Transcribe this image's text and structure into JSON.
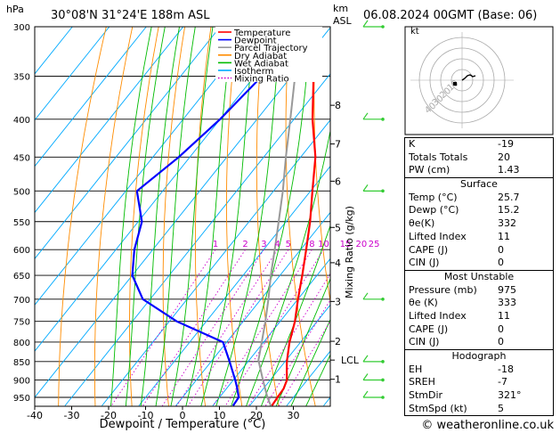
{
  "header": {
    "y_unit": "hPa",
    "location": "30°08'N  31°24'E  188m  ASL",
    "km_unit": "km",
    "asl": "ASL",
    "datetime": "06.08.2024  00GMT  (Base: 06)"
  },
  "legend": [
    {
      "name": "Temperature",
      "color": "#ff0000"
    },
    {
      "name": "Dewpoint",
      "color": "#0000ff"
    },
    {
      "name": "Parcel Trajectory",
      "color": "#999999"
    },
    {
      "name": "Dry Adiabat",
      "color": "#ff8c00"
    },
    {
      "name": "Wet Adiabat",
      "color": "#00bb00"
    },
    {
      "name": "Isotherm",
      "color": "#00aaff"
    },
    {
      "name": "Mixing Ratio",
      "color": "#cc00cc"
    }
  ],
  "chart_data": {
    "type": "skew-t",
    "xlabel": "Dewpoint / Temperature (°C)",
    "ylabel": "Mixing Ratio (g/kg)",
    "x_ticks": [
      "-40",
      "-30",
      "-20",
      "-10",
      "0",
      "10",
      "20",
      "30"
    ],
    "p_ticks": [
      "300",
      "350",
      "400",
      "450",
      "500",
      "550",
      "600",
      "650",
      "700",
      "750",
      "800",
      "850",
      "900",
      "950"
    ],
    "km_ticks": [
      {
        "label": "8",
        "p": 383
      },
      {
        "label": "7",
        "p": 432
      },
      {
        "label": "6",
        "p": 485
      },
      {
        "label": "5",
        "p": 560
      },
      {
        "label": "4",
        "p": 625
      },
      {
        "label": "3",
        "p": 705
      },
      {
        "label": "2",
        "p": 798
      },
      {
        "label": "LCL",
        "p": 846
      },
      {
        "label": "1",
        "p": 898
      }
    ],
    "mixing_ratio_labels": [
      "1",
      "2",
      "3",
      "4",
      "5",
      "8",
      "10",
      "15",
      "20",
      "25"
    ],
    "hodograph_rings": [
      "10",
      "20",
      "30",
      "40"
    ],
    "hodograph_label": "kt",
    "series": [
      {
        "name": "Temperature",
        "color": "#ff0000",
        "p": [
          975,
          950,
          925,
          900,
          875,
          850,
          800,
          750,
          700,
          650,
          600,
          550,
          500,
          450,
          400,
          350
        ],
        "t": [
          26,
          25.7,
          25.5,
          24.5,
          22.5,
          20.5,
          17,
          14,
          10,
          6,
          1.5,
          -3.5,
          -9.5,
          -16,
          -25,
          -34
        ]
      },
      {
        "name": "Dewpoint",
        "color": "#0000ff",
        "p": [
          975,
          950,
          925,
          900,
          850,
          800,
          750,
          700,
          650,
          600,
          550,
          500,
          450,
          400,
          350,
          300
        ],
        "t": [
          15.5,
          15.2,
          13,
          10.5,
          5,
          -1,
          -18,
          -32,
          -40,
          -45,
          -49,
          -57,
          -53,
          -50,
          -48,
          -50
        ]
      },
      {
        "name": "Parcel Trajectory",
        "color": "#999999",
        "p": [
          975,
          950,
          900,
          846,
          800,
          750,
          700,
          650,
          600,
          550,
          500,
          450,
          400,
          350,
          300
        ],
        "t": [
          25.7,
          23,
          18,
          12.5,
          9.5,
          6,
          2,
          -2.5,
          -7,
          -12,
          -17.5,
          -24,
          -31,
          -39,
          -48
        ]
      }
    ]
  },
  "indices": {
    "k": {
      "label": "K",
      "value": "-19"
    },
    "tt": {
      "label": "Totals Totals",
      "value": "20"
    },
    "pw": {
      "label": "PW (cm)",
      "value": "1.43"
    },
    "surface": {
      "title": "Surface",
      "rows": [
        {
          "label": "Temp (°C)",
          "value": "25.7"
        },
        {
          "label": "Dewp (°C)",
          "value": "15.2"
        },
        {
          "label": "θe(K)",
          "value": "332"
        },
        {
          "label": "Lifted Index",
          "value": "11"
        },
        {
          "label": "CAPE (J)",
          "value": "0"
        },
        {
          "label": "CIN (J)",
          "value": "0"
        }
      ]
    },
    "mu": {
      "title": "Most Unstable",
      "rows": [
        {
          "label": "Pressure (mb)",
          "value": "975"
        },
        {
          "label": "θe (K)",
          "value": "333"
        },
        {
          "label": "Lifted Index",
          "value": "11"
        },
        {
          "label": "CAPE (J)",
          "value": "0"
        },
        {
          "label": "CIN (J)",
          "value": "0"
        }
      ]
    },
    "hodo": {
      "title": "Hodograph",
      "rows": [
        {
          "label": "EH",
          "value": "-18"
        },
        {
          "label": "SREH",
          "value": "-7"
        },
        {
          "label": "StmDir",
          "value": "321°"
        },
        {
          "label": "StmSpd (kt)",
          "value": "5"
        }
      ]
    }
  },
  "footer": {
    "credit": "© weatheronline.co.uk"
  }
}
